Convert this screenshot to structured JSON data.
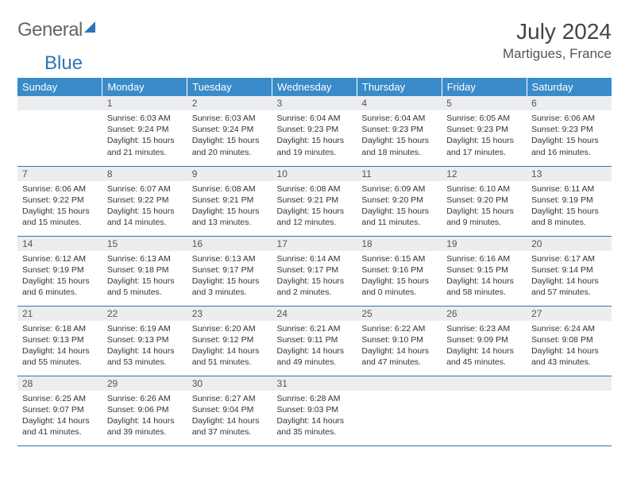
{
  "logo": {
    "part1": "General",
    "part2": "Blue"
  },
  "title": "July 2024",
  "location": "Martigues, France",
  "colors": {
    "header_bg": "#3a8bc9",
    "header_text": "#ffffff",
    "daynum_bg": "#ebedef",
    "row_border": "#2e75b6",
    "logo_blue": "#2e75b6"
  },
  "weekdays": [
    "Sunday",
    "Monday",
    "Tuesday",
    "Wednesday",
    "Thursday",
    "Friday",
    "Saturday"
  ],
  "weeks": [
    [
      {
        "n": "",
        "lines": []
      },
      {
        "n": "1",
        "lines": [
          "Sunrise: 6:03 AM",
          "Sunset: 9:24 PM",
          "Daylight: 15 hours",
          "and 21 minutes."
        ]
      },
      {
        "n": "2",
        "lines": [
          "Sunrise: 6:03 AM",
          "Sunset: 9:24 PM",
          "Daylight: 15 hours",
          "and 20 minutes."
        ]
      },
      {
        "n": "3",
        "lines": [
          "Sunrise: 6:04 AM",
          "Sunset: 9:23 PM",
          "Daylight: 15 hours",
          "and 19 minutes."
        ]
      },
      {
        "n": "4",
        "lines": [
          "Sunrise: 6:04 AM",
          "Sunset: 9:23 PM",
          "Daylight: 15 hours",
          "and 18 minutes."
        ]
      },
      {
        "n": "5",
        "lines": [
          "Sunrise: 6:05 AM",
          "Sunset: 9:23 PM",
          "Daylight: 15 hours",
          "and 17 minutes."
        ]
      },
      {
        "n": "6",
        "lines": [
          "Sunrise: 6:06 AM",
          "Sunset: 9:23 PM",
          "Daylight: 15 hours",
          "and 16 minutes."
        ]
      }
    ],
    [
      {
        "n": "7",
        "lines": [
          "Sunrise: 6:06 AM",
          "Sunset: 9:22 PM",
          "Daylight: 15 hours",
          "and 15 minutes."
        ]
      },
      {
        "n": "8",
        "lines": [
          "Sunrise: 6:07 AM",
          "Sunset: 9:22 PM",
          "Daylight: 15 hours",
          "and 14 minutes."
        ]
      },
      {
        "n": "9",
        "lines": [
          "Sunrise: 6:08 AM",
          "Sunset: 9:21 PM",
          "Daylight: 15 hours",
          "and 13 minutes."
        ]
      },
      {
        "n": "10",
        "lines": [
          "Sunrise: 6:08 AM",
          "Sunset: 9:21 PM",
          "Daylight: 15 hours",
          "and 12 minutes."
        ]
      },
      {
        "n": "11",
        "lines": [
          "Sunrise: 6:09 AM",
          "Sunset: 9:20 PM",
          "Daylight: 15 hours",
          "and 11 minutes."
        ]
      },
      {
        "n": "12",
        "lines": [
          "Sunrise: 6:10 AM",
          "Sunset: 9:20 PM",
          "Daylight: 15 hours",
          "and 9 minutes."
        ]
      },
      {
        "n": "13",
        "lines": [
          "Sunrise: 6:11 AM",
          "Sunset: 9:19 PM",
          "Daylight: 15 hours",
          "and 8 minutes."
        ]
      }
    ],
    [
      {
        "n": "14",
        "lines": [
          "Sunrise: 6:12 AM",
          "Sunset: 9:19 PM",
          "Daylight: 15 hours",
          "and 6 minutes."
        ]
      },
      {
        "n": "15",
        "lines": [
          "Sunrise: 6:13 AM",
          "Sunset: 9:18 PM",
          "Daylight: 15 hours",
          "and 5 minutes."
        ]
      },
      {
        "n": "16",
        "lines": [
          "Sunrise: 6:13 AM",
          "Sunset: 9:17 PM",
          "Daylight: 15 hours",
          "and 3 minutes."
        ]
      },
      {
        "n": "17",
        "lines": [
          "Sunrise: 6:14 AM",
          "Sunset: 9:17 PM",
          "Daylight: 15 hours",
          "and 2 minutes."
        ]
      },
      {
        "n": "18",
        "lines": [
          "Sunrise: 6:15 AM",
          "Sunset: 9:16 PM",
          "Daylight: 15 hours",
          "and 0 minutes."
        ]
      },
      {
        "n": "19",
        "lines": [
          "Sunrise: 6:16 AM",
          "Sunset: 9:15 PM",
          "Daylight: 14 hours",
          "and 58 minutes."
        ]
      },
      {
        "n": "20",
        "lines": [
          "Sunrise: 6:17 AM",
          "Sunset: 9:14 PM",
          "Daylight: 14 hours",
          "and 57 minutes."
        ]
      }
    ],
    [
      {
        "n": "21",
        "lines": [
          "Sunrise: 6:18 AM",
          "Sunset: 9:13 PM",
          "Daylight: 14 hours",
          "and 55 minutes."
        ]
      },
      {
        "n": "22",
        "lines": [
          "Sunrise: 6:19 AM",
          "Sunset: 9:13 PM",
          "Daylight: 14 hours",
          "and 53 minutes."
        ]
      },
      {
        "n": "23",
        "lines": [
          "Sunrise: 6:20 AM",
          "Sunset: 9:12 PM",
          "Daylight: 14 hours",
          "and 51 minutes."
        ]
      },
      {
        "n": "24",
        "lines": [
          "Sunrise: 6:21 AM",
          "Sunset: 9:11 PM",
          "Daylight: 14 hours",
          "and 49 minutes."
        ]
      },
      {
        "n": "25",
        "lines": [
          "Sunrise: 6:22 AM",
          "Sunset: 9:10 PM",
          "Daylight: 14 hours",
          "and 47 minutes."
        ]
      },
      {
        "n": "26",
        "lines": [
          "Sunrise: 6:23 AM",
          "Sunset: 9:09 PM",
          "Daylight: 14 hours",
          "and 45 minutes."
        ]
      },
      {
        "n": "27",
        "lines": [
          "Sunrise: 6:24 AM",
          "Sunset: 9:08 PM",
          "Daylight: 14 hours",
          "and 43 minutes."
        ]
      }
    ],
    [
      {
        "n": "28",
        "lines": [
          "Sunrise: 6:25 AM",
          "Sunset: 9:07 PM",
          "Daylight: 14 hours",
          "and 41 minutes."
        ]
      },
      {
        "n": "29",
        "lines": [
          "Sunrise: 6:26 AM",
          "Sunset: 9:06 PM",
          "Daylight: 14 hours",
          "and 39 minutes."
        ]
      },
      {
        "n": "30",
        "lines": [
          "Sunrise: 6:27 AM",
          "Sunset: 9:04 PM",
          "Daylight: 14 hours",
          "and 37 minutes."
        ]
      },
      {
        "n": "31",
        "lines": [
          "Sunrise: 6:28 AM",
          "Sunset: 9:03 PM",
          "Daylight: 14 hours",
          "and 35 minutes."
        ]
      },
      {
        "n": "",
        "lines": []
      },
      {
        "n": "",
        "lines": []
      },
      {
        "n": "",
        "lines": []
      }
    ]
  ]
}
